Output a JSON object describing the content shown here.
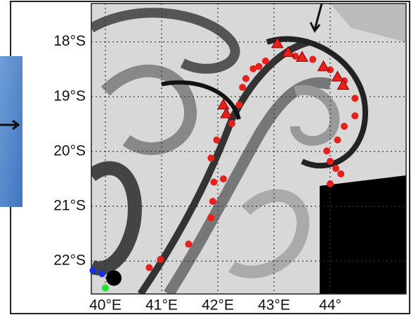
{
  "chart_data": {
    "type": "scatter",
    "xlim": [
      39.75,
      45.35
    ],
    "ylim": [
      -22.6,
      -17.3
    ],
    "xticks": [
      {
        "value": 40,
        "label": "40°E"
      },
      {
        "value": 41,
        "label": "41°E"
      },
      {
        "value": 42,
        "label": "42°E"
      },
      {
        "value": 43,
        "label": "43°E"
      },
      {
        "value": 44,
        "label": "44°"
      }
    ],
    "yticks": [
      {
        "value": -18,
        "label": "18°S"
      },
      {
        "value": -19,
        "label": "19°S"
      },
      {
        "value": -20,
        "label": "20°S"
      },
      {
        "value": -21,
        "label": "21°S"
      },
      {
        "value": -22,
        "label": "22°S"
      }
    ],
    "grid": true,
    "series": [
      {
        "color": "#e8201c",
        "marker": "circle",
        "x": [
          40.78,
          40.98,
          41.48,
          41.88,
          41.91,
          41.93,
          42.1,
          41.88,
          41.98,
          42.25,
          42.38,
          42.44,
          42.5,
          42.63,
          42.73,
          42.85,
          43.38,
          43.69,
          44.0,
          44.25,
          44.44,
          44.44,
          44.25,
          44.13,
          43.94,
          44.0,
          44.1,
          44.19,
          44.0
        ],
        "values": [
          -22.12,
          -21.97,
          -21.69,
          -21.21,
          -20.91,
          -20.56,
          -20.5,
          -20.12,
          -19.79,
          -19.49,
          -19.15,
          -18.83,
          -18.67,
          -18.49,
          -18.45,
          -18.35,
          -18.26,
          -18.32,
          -18.51,
          -18.71,
          -19.03,
          -19.35,
          -19.54,
          -19.79,
          -19.99,
          -20.18,
          -20.31,
          -20.41,
          -20.59
        ]
      },
      {
        "color": "#e8201c",
        "marker": "triangle",
        "x": [
          43.06,
          43.25,
          43.5,
          43.88,
          44.13,
          44.23,
          42.1,
          42.15
        ],
        "values": [
          -18.03,
          -18.19,
          -18.28,
          -18.45,
          -18.64,
          -18.79,
          -19.15,
          -19.31
        ]
      },
      {
        "color": "#1a2ee0",
        "marker": "circle",
        "x": [
          39.78,
          39.94
        ],
        "values": [
          -22.17,
          -22.23
        ]
      },
      {
        "color": "#000000",
        "marker": "big-circle",
        "x": [
          40.15
        ],
        "values": [
          -22.31
        ]
      },
      {
        "color": "#22dd33",
        "marker": "circle",
        "x": [
          40.0
        ],
        "values": [
          -22.49
        ]
      }
    ]
  }
}
